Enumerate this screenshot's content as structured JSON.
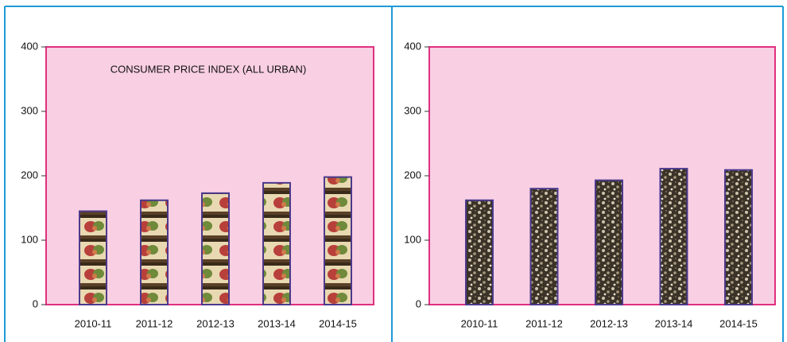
{
  "chart_data": [
    {
      "type": "bar",
      "title": "CONSUMER PRICE INDEX (ALL URBAN)",
      "categories": [
        "2010-11",
        "2011-12",
        "2012-13",
        "2013-14",
        "2014-15"
      ],
      "values": [
        145,
        162,
        173,
        189,
        198
      ],
      "color": "#4b3a8c",
      "ylim": [
        0,
        400
      ],
      "yticks": [
        0,
        100,
        200,
        300,
        400
      ]
    },
    {
      "type": "bar",
      "categories": [
        "2010-11",
        "2011-12",
        "2012-13",
        "2013-14",
        "2014-15"
      ],
      "values": [
        162,
        180,
        193,
        211,
        209
      ],
      "color": "#4b3a8c",
      "ylim": [
        0,
        400
      ],
      "yticks": [
        0,
        100,
        200,
        300,
        400
      ]
    }
  ]
}
